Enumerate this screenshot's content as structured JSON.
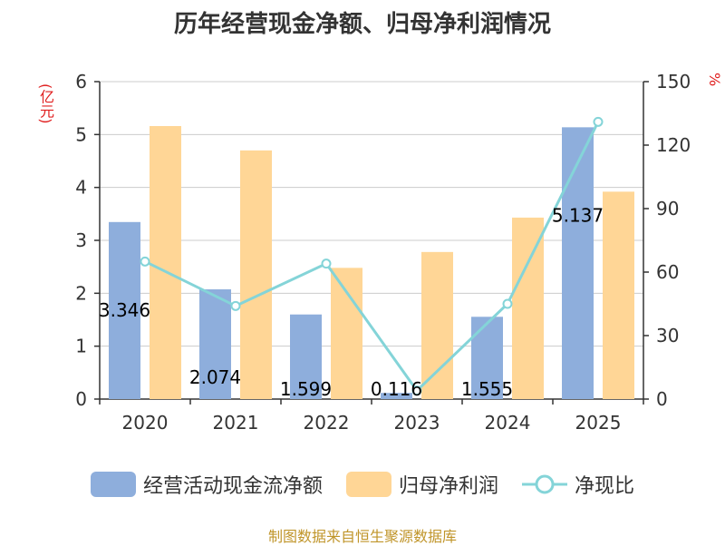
{
  "title": "历年经营现金净额、归母净利润情况",
  "left_unit": "(亿元)",
  "right_unit": "%",
  "source": "制图数据来自恒生聚源数据库",
  "colors": {
    "cash": "#8eaedc",
    "profit": "#ffd696",
    "ratio": "#84d4d8",
    "axis": "#333333",
    "grid": "#cccccc"
  },
  "chart_data": {
    "type": "bar",
    "categories": [
      "2020",
      "2021",
      "2022",
      "2023",
      "2024",
      "2025"
    ],
    "series": [
      {
        "name": "经营活动现金流净额",
        "type": "bar",
        "axis": "left",
        "values": [
          3.346,
          2.074,
          1.599,
          0.116,
          1.555,
          5.137
        ],
        "labels": [
          "3.346",
          "2.074",
          "1.599",
          "0.116",
          "1.555",
          "5.137"
        ]
      },
      {
        "name": "归母净利润",
        "type": "bar",
        "axis": "left",
        "values": [
          5.16,
          4.7,
          2.48,
          2.78,
          3.43,
          3.92
        ]
      },
      {
        "name": "净现比",
        "type": "line",
        "axis": "right",
        "values": [
          65,
          44,
          64,
          4,
          45,
          131
        ]
      }
    ],
    "y_left": {
      "min": 0,
      "max": 6,
      "ticks": [
        "0",
        "1",
        "2",
        "3",
        "4",
        "5",
        "6"
      ]
    },
    "y_right": {
      "min": 0,
      "max": 150,
      "ticks": [
        "0",
        "30",
        "60",
        "90",
        "120",
        "150"
      ]
    },
    "grid": true,
    "legend_position": "bottom"
  }
}
